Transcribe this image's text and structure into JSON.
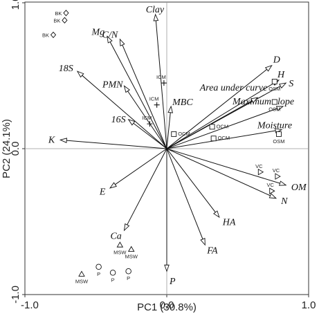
{
  "chart_data": {
    "type": "scatter",
    "xlabel": "PC1 (30.8%)",
    "ylabel": "PC2 (24.1%)",
    "xlim": [
      -1.0,
      1.0
    ],
    "ylim": [
      -1.0,
      1.0
    ],
    "x_ticks": [
      {
        "value": -1.0,
        "label": "-1.0"
      },
      {
        "value": 0.0,
        "label": "0.0"
      },
      {
        "value": 1.0,
        "label": "1.0"
      }
    ],
    "y_ticks": [
      {
        "value": -1.0,
        "label": "-1.0"
      },
      {
        "value": 0.0,
        "label": "0.0"
      },
      {
        "value": 1.0,
        "label": "1.0"
      }
    ],
    "zero_lines": true,
    "loadings": [
      {
        "name": "Clay",
        "x": -0.08,
        "y": 0.92
      },
      {
        "name": "Mg",
        "x": -0.42,
        "y": 0.77
      },
      {
        "name": "C/N",
        "x": -0.33,
        "y": 0.75
      },
      {
        "name": "18S",
        "x": -0.63,
        "y": 0.53
      },
      {
        "name": "PMN",
        "x": -0.3,
        "y": 0.43
      },
      {
        "name": "MBC",
        "x": 0.03,
        "y": 0.29
      },
      {
        "name": "16S",
        "x": -0.27,
        "y": 0.2
      },
      {
        "name": "K",
        "x": -0.75,
        "y": 0.06
      },
      {
        "name": "E",
        "x": -0.4,
        "y": -0.27
      },
      {
        "name": "Ca",
        "x": -0.3,
        "y": -0.56
      },
      {
        "name": "P",
        "x": 0.0,
        "y": -0.84
      },
      {
        "name": "FA",
        "x": 0.27,
        "y": -0.66
      },
      {
        "name": "HA",
        "x": 0.37,
        "y": -0.47
      },
      {
        "name": "N",
        "x": 0.77,
        "y": -0.34
      },
      {
        "name": "OM",
        "x": 0.84,
        "y": -0.25
      },
      {
        "name": "Moisture",
        "x": 0.81,
        "y": 0.13
      },
      {
        "name": "Maximum slope",
        "x": 0.82,
        "y": 0.29
      },
      {
        "name": "S",
        "x": 0.84,
        "y": 0.45
      },
      {
        "name": "H",
        "x": 0.79,
        "y": 0.47
      },
      {
        "name": "D",
        "x": 0.74,
        "y": 0.57
      },
      {
        "name": "Area under curve",
        "x": 0.64,
        "y": 0.35
      }
    ],
    "samples": [
      {
        "label": "BK",
        "shape": "diamond",
        "x": -0.71,
        "y": 0.93
      },
      {
        "label": "BK",
        "shape": "diamond",
        "x": -0.72,
        "y": 0.88
      },
      {
        "label": "BK",
        "shape": "diamond",
        "x": -0.8,
        "y": 0.78
      },
      {
        "label": "ICM",
        "shape": "cross",
        "x": -0.02,
        "y": 0.45
      },
      {
        "label": "ICM",
        "shape": "cross",
        "x": -0.07,
        "y": 0.3
      },
      {
        "label": "ICM",
        "shape": "cross",
        "x": -0.12,
        "y": 0.17
      },
      {
        "label": "OCM",
        "shape": "square",
        "x": 0.05,
        "y": 0.1
      },
      {
        "label": "OCM",
        "shape": "square",
        "x": 0.32,
        "y": 0.15
      },
      {
        "label": "OCM",
        "shape": "square",
        "x": 0.33,
        "y": 0.07
      },
      {
        "label": "OSM",
        "shape": "square",
        "x": 0.76,
        "y": 0.46
      },
      {
        "label": "OSM",
        "shape": "square",
        "x": 0.76,
        "y": 0.32
      },
      {
        "label": "OSM",
        "shape": "square",
        "x": 0.79,
        "y": 0.1
      },
      {
        "label": "VC",
        "shape": "triangle-right",
        "x": 0.66,
        "y": -0.16
      },
      {
        "label": "VC",
        "shape": "triangle-right",
        "x": 0.78,
        "y": -0.19
      },
      {
        "label": "VC",
        "shape": "triangle-right",
        "x": 0.74,
        "y": -0.29
      },
      {
        "label": "MSW",
        "shape": "triangle-up",
        "x": -0.33,
        "y": -0.66
      },
      {
        "label": "MSW",
        "shape": "triangle-up",
        "x": -0.25,
        "y": -0.69
      },
      {
        "label": "MSW",
        "shape": "triangle-up",
        "x": -0.6,
        "y": -0.86
      },
      {
        "label": "P",
        "shape": "circle",
        "x": -0.48,
        "y": -0.81
      },
      {
        "label": "P",
        "shape": "circle",
        "x": -0.38,
        "y": -0.85
      },
      {
        "label": "P",
        "shape": "circle",
        "x": -0.27,
        "y": -0.84
      }
    ]
  }
}
